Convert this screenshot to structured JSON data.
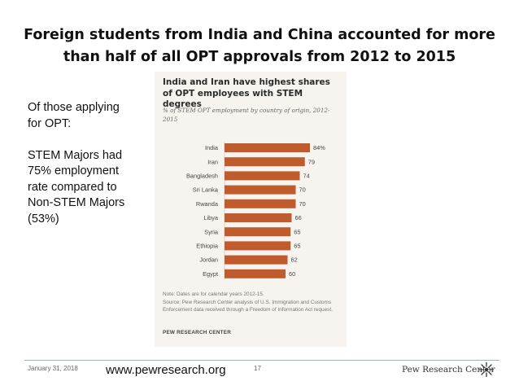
{
  "slide": {
    "title": "Foreign students from India and China accounted for more than half of all OPT approvals from 2012 to 2015",
    "side_text": {
      "line1": "Of those applying for OPT:",
      "line2": "STEM Majors had 75% employment rate compared to Non-STEM Majors (53%)"
    },
    "footer": {
      "date": "January 31, 2018",
      "page_number": "17",
      "url": "www.pewresearch.org",
      "brand": "Pew Research Center"
    }
  },
  "chart_data": {
    "type": "bar",
    "orientation": "horizontal",
    "title": "India and Iran have highest shares of OPT employees with STEM degrees",
    "subtitle": "% of STEM OPT employment by country of origin, 2012-2015",
    "categories": [
      "India",
      "Iran",
      "Bangladesh",
      "Sri Lanka",
      "Rwanda",
      "Libya",
      "Syria",
      "Ethiopia",
      "Jordan",
      "Egypt"
    ],
    "values": [
      84,
      79,
      74,
      70,
      70,
      66,
      65,
      65,
      62,
      60
    ],
    "value_labels": [
      "84%",
      "79",
      "74",
      "70",
      "70",
      "66",
      "65",
      "65",
      "62",
      "60"
    ],
    "xlim": [
      0,
      100
    ],
    "bar_color": "#bf5b2c",
    "note": "Note: Dates are for calendar years 2012-15.",
    "source": "Source: Pew Research Center analysis of U.S. Immigration and Customs Enforcement data received through a Freedom of Information Act request.",
    "brand": "PEW RESEARCH CENTER"
  }
}
